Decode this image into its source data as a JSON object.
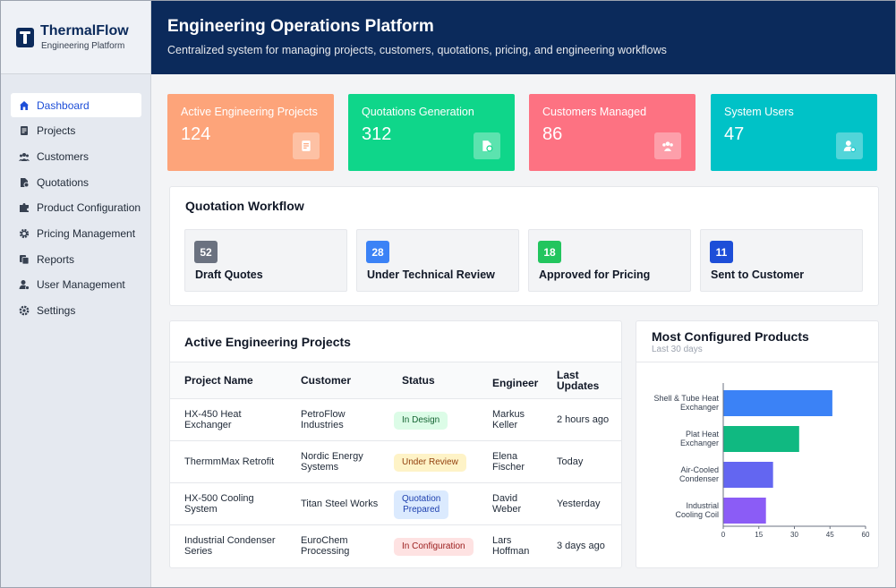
{
  "brand": {
    "title": "ThermalFlow",
    "subtitle": "Engineering Platform"
  },
  "sidebar": {
    "items": [
      {
        "label": "Dashboard",
        "icon": "home-icon",
        "active": true
      },
      {
        "label": "Projects",
        "icon": "document-icon",
        "active": false
      },
      {
        "label": "Customers",
        "icon": "users-icon",
        "active": false
      },
      {
        "label": "Quotations",
        "icon": "file-dollar-icon",
        "active": false
      },
      {
        "label": "Product Configuration",
        "icon": "puzzle-icon",
        "active": false
      },
      {
        "label": "Pricing Management",
        "icon": "gear-icon",
        "active": false
      },
      {
        "label": "Reports",
        "icon": "reports-icon",
        "active": false
      },
      {
        "label": "User Management",
        "icon": "user-cog-icon",
        "active": false
      },
      {
        "label": "Settings",
        "icon": "settings-icon",
        "active": false
      }
    ]
  },
  "header": {
    "title": "Engineering Operations Platform",
    "subtitle": "Centralized system for managing projects, customers, quotations, pricing, and engineering workflows"
  },
  "stats": [
    {
      "label": "Active Engineering Projects",
      "value": "124",
      "color": "#fda47a",
      "icon": "document-icon"
    },
    {
      "label": "Quotations Generation",
      "value": "312",
      "color": "#0fd68a",
      "icon": "file-dollar-icon"
    },
    {
      "label": "Customers Managed",
      "value": "86",
      "color": "#fd7282",
      "icon": "users-icon"
    },
    {
      "label": "System Users",
      "value": "47",
      "color": "#00c2c7",
      "icon": "user-cog-icon"
    }
  ],
  "workflow": {
    "title": "Quotation Workflow",
    "steps": [
      {
        "count": "52",
        "label": "Draft Quotes",
        "color": "#6b7280"
      },
      {
        "count": "28",
        "label": "Under Technical Review",
        "color": "#3b82f6"
      },
      {
        "count": "18",
        "label": "Approved for Pricing",
        "color": "#22c55e"
      },
      {
        "count": "11",
        "label": "Sent to Customer",
        "color": "#1d4ed8"
      }
    ]
  },
  "projects": {
    "title": "Active Engineering Projects",
    "headers": {
      "name": "Project Name",
      "customer": "Customer",
      "status": "Status",
      "engineer": "Engineer",
      "updates_line1": "Last",
      "updates_line2": "Updates"
    },
    "rows": [
      {
        "name1": "HX-450 Heat",
        "name2": "Exchanger",
        "cust1": "PetroFlow",
        "cust2": "Industries",
        "status1": "In Design",
        "status2": "",
        "status_bg": "#dcfce7",
        "status_fg": "#166534",
        "eng1": "Markus",
        "eng2": "Keller",
        "updated": "2 hours ago"
      },
      {
        "name1": "ThermmMax Retrofit",
        "name2": "",
        "cust1": "Nordic Energy",
        "cust2": "Systems",
        "status1": "Under Review",
        "status2": "",
        "status_bg": "#fef3c7",
        "status_fg": "#92400e",
        "eng1": "Elena",
        "eng2": "Fischer",
        "updated": "Today"
      },
      {
        "name1": "HX-500 Cooling",
        "name2": "System",
        "cust1": "Titan Steel Works",
        "cust2": "",
        "status1": "Quotation",
        "status2": "Prepared",
        "status_bg": "#dbeafe",
        "status_fg": "#1e40af",
        "eng1": "David",
        "eng2": "Weber",
        "updated": "Yesterday"
      },
      {
        "name1": "Industrial Condenser",
        "name2": "Series",
        "cust1": "EuroChem",
        "cust2": "Processing",
        "status1": "In Configuration",
        "status2": "",
        "status_bg": "#fee2e2",
        "status_fg": "#991b1b",
        "eng1": "Lars",
        "eng2": "Hoffman",
        "updated": "3 days ago"
      }
    ]
  },
  "products": {
    "title": "Most Configured Products",
    "subtitle": "Last 30 days"
  },
  "chart_data": {
    "type": "bar",
    "orientation": "horizontal",
    "title": "Most Configured Products",
    "subtitle": "Last 30 days",
    "categories": [
      [
        "Shell & Tube Heat",
        "Exchanger"
      ],
      [
        "Plat Heat",
        "Exchanger"
      ],
      [
        "Air-Cooled",
        "Condenser"
      ],
      [
        "Industrial",
        "Cooling Coil"
      ]
    ],
    "values": [
      46,
      32,
      21,
      18
    ],
    "colors": [
      "#3b82f6",
      "#10b981",
      "#6366f1",
      "#8b5cf6"
    ],
    "xlim": [
      0,
      60
    ],
    "xticks": [
      "0",
      "15",
      "30",
      "45",
      "60"
    ],
    "grid": false
  }
}
